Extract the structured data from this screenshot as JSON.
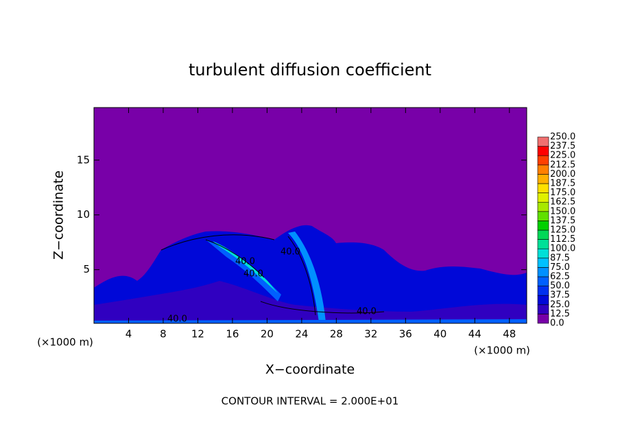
{
  "chart_data": {
    "type": "contour",
    "title": "turbulent diffusion coefficient",
    "xlabel": "X−coordinate",
    "ylabel": "Z−coordinate",
    "x_unit": "(×1000 m)",
    "y_unit": "(×1000 m)",
    "note": "CONTOUR INTERVAL = 2.000E+01",
    "contour_labels": [
      "40.0",
      "40.0",
      "40.0",
      "40.0",
      "40.0"
    ],
    "xlim": [
      0,
      50
    ],
    "xticks": [
      4,
      8,
      12,
      16,
      20,
      24,
      28,
      32,
      36,
      40,
      44,
      48
    ],
    "ylim": [
      0.1,
      19.8
    ],
    "yticks": [
      5,
      10,
      15
    ],
    "colorbar": {
      "levels": [
        {
          "value": 0,
          "label": "0.0"
        },
        12.5,
        {
          "value": 25,
          "label": "25.0"
        },
        37.5,
        {
          "value": 50,
          "label": "50.0"
        },
        62.5,
        {
          "value": 75,
          "label": "75.0"
        },
        87.5,
        {
          "value": 100,
          "label": "100.0"
        },
        112.5,
        {
          "value": 125,
          "label": "125.0"
        },
        137.5,
        {
          "value": 150,
          "label": "150.0"
        },
        162.5,
        {
          "value": 175,
          "label": "175.0"
        },
        187.5,
        {
          "value": 200,
          "label": "200.0"
        },
        212.5,
        {
          "value": 225,
          "label": "225.0"
        },
        237.5,
        {
          "value": 250,
          "label": "250.0"
        }
      ],
      "colors": [
        "#7800a8",
        "#3000c0",
        "#0008d8",
        "#0030f0",
        "#0060ff",
        "#0090ff",
        "#00c0ff",
        "#00e0d8",
        "#00e098",
        "#00d858",
        "#00d000",
        "#60e000",
        "#a8e800",
        "#e0f000",
        "#ffe000",
        "#ffb000",
        "#ff8000",
        "#ff4000",
        "#ff0000",
        "#f07070"
      ]
    }
  }
}
